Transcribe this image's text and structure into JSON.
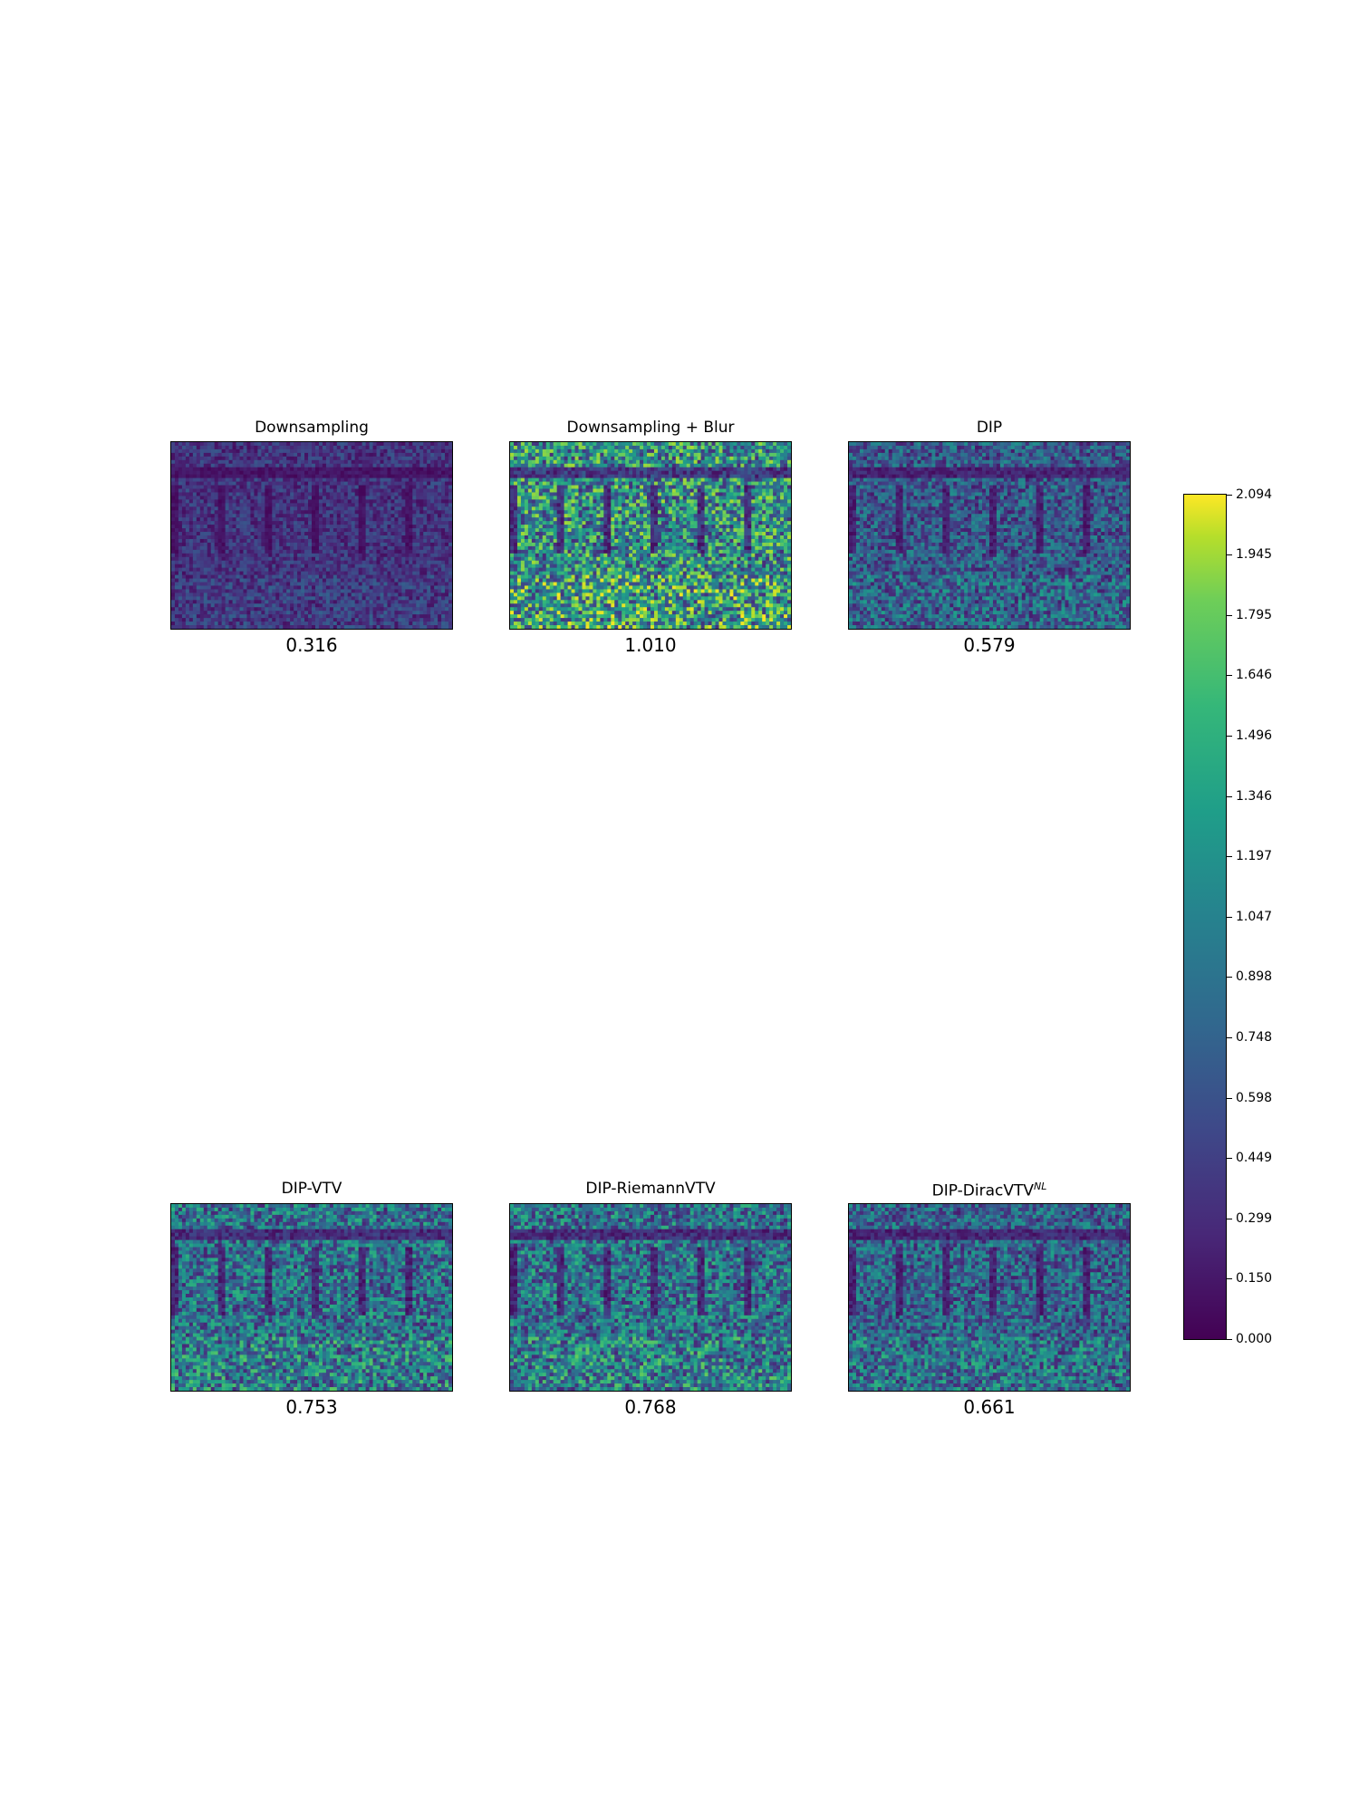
{
  "chart_data": {
    "type": "heatmap",
    "colormap": "viridis",
    "panels": [
      {
        "title": "Downsampling",
        "value": "0.316",
        "mean": 0.316
      },
      {
        "title": "Downsampling + Blur",
        "value": "1.010",
        "mean": 1.01
      },
      {
        "title": "DIP",
        "value": "0.579",
        "mean": 0.579
      },
      {
        "title": "DIP-VTV",
        "value": "0.753",
        "mean": 0.753
      },
      {
        "title": "DIP-RiemannVTV",
        "value": "0.768",
        "mean": 0.768
      },
      {
        "title_base": "DIP-DiracVTV",
        "title_sup": "NL",
        "value": "0.661",
        "mean": 0.661
      }
    ],
    "colorbar": {
      "min": 0.0,
      "max": 2.094,
      "ticks": [
        "0.000",
        "0.150",
        "0.299",
        "0.449",
        "0.598",
        "0.748",
        "0.898",
        "1.047",
        "1.197",
        "1.346",
        "1.496",
        "1.646",
        "1.795",
        "1.945",
        "2.094"
      ]
    }
  }
}
